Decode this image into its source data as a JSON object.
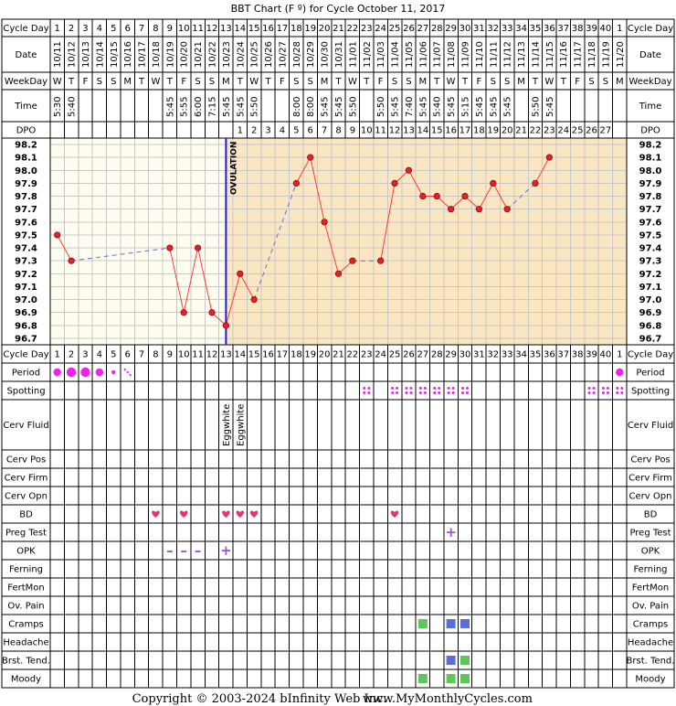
{
  "title": "BBT Chart (F º) for Cycle October 11, 2017",
  "copyright": "Copyright © 2003-2024 bInfinity Web Inc.",
  "site": "www.MyMonthlyCycles.com",
  "ovulation_label": "OVULATION",
  "ovulation_day": 13,
  "row_labels": {
    "cycle_day": "Cycle Day",
    "date": "Date",
    "weekday": "WeekDay",
    "time": "Time",
    "dpo": "DPO",
    "period": "Period",
    "spotting": "Spotting",
    "cerv_fluid": "Cerv Fluid",
    "cerv_pos": "Cerv Pos",
    "cerv_firm": "Cerv Firm",
    "cerv_opn": "Cerv Opn",
    "bd": "BD",
    "preg_test": "Preg Test",
    "opk": "OPK",
    "ferning": "Ferning",
    "fertmon": "FertMon",
    "ov_pain": "Ov. Pain",
    "cramps": "Cramps",
    "headache": "Headache",
    "brst_tend": "Brst. Tend.",
    "moody": "Moody"
  },
  "cycle_days": [
    "1",
    "2",
    "3",
    "4",
    "5",
    "6",
    "7",
    "8",
    "9",
    "10",
    "11",
    "12",
    "13",
    "14",
    "15",
    "16",
    "17",
    "18",
    "19",
    "20",
    "21",
    "22",
    "23",
    "24",
    "25",
    "26",
    "27",
    "28",
    "29",
    "30",
    "31",
    "32",
    "33",
    "34",
    "35",
    "36",
    "37",
    "38",
    "39",
    "40",
    "1"
  ],
  "dates": [
    "10/11",
    "10/12",
    "10/13",
    "10/14",
    "10/15",
    "10/16",
    "10/17",
    "10/18",
    "10/19",
    "10/20",
    "10/21",
    "10/22",
    "10/23",
    "10/24",
    "10/25",
    "10/26",
    "10/27",
    "10/28",
    "10/29",
    "10/30",
    "10/31",
    "11/01",
    "11/02",
    "11/03",
    "11/04",
    "11/05",
    "11/06",
    "11/07",
    "11/08",
    "11/09",
    "11/10",
    "11/11",
    "11/12",
    "11/13",
    "11/14",
    "11/15",
    "11/16",
    "11/17",
    "11/18",
    "11/19",
    "11/20"
  ],
  "weekdays": [
    "W",
    "T",
    "F",
    "S",
    "S",
    "M",
    "T",
    "W",
    "T",
    "F",
    "S",
    "S",
    "M",
    "T",
    "W",
    "T",
    "F",
    "S",
    "S",
    "M",
    "T",
    "W",
    "T",
    "F",
    "S",
    "S",
    "M",
    "T",
    "W",
    "T",
    "F",
    "S",
    "S",
    "M",
    "T",
    "W",
    "T",
    "F",
    "S",
    "S",
    "M"
  ],
  "times": [
    "5:30",
    "5:40",
    "",
    "",
    "",
    "",
    "",
    "",
    "5:45",
    "5:55",
    "6:00",
    "7:15",
    "5:45",
    "5:45",
    "5:50",
    "",
    "",
    "8:00",
    "8:00",
    "5:45",
    "5:45",
    "5:50",
    "",
    "5:50",
    "5:45",
    "7:40",
    "5:45",
    "5:40",
    "5:45",
    "5:15",
    "5:45",
    "5:45",
    "5:45",
    "",
    "5:50",
    "5:45",
    "",
    "",
    "",
    "",
    ""
  ],
  "dpo": [
    "",
    "",
    "",
    "",
    "",
    "",
    "",
    "",
    "",
    "",
    "",
    "",
    "",
    "1",
    "2",
    "3",
    "4",
    "5",
    "6",
    "7",
    "8",
    "9",
    "10",
    "11",
    "12",
    "13",
    "14",
    "15",
    "16",
    "17",
    "18",
    "19",
    "20",
    "21",
    "22",
    "23",
    "24",
    "25",
    "26",
    "27",
    ""
  ],
  "temp_labels": [
    "98.2",
    "98.1",
    "98.0",
    "97.9",
    "97.8",
    "97.7",
    "97.6",
    "97.5",
    "97.4",
    "97.3",
    "97.2",
    "97.1",
    "97.0",
    "96.9",
    "96.8",
    "96.7"
  ],
  "cerv_fluid": [
    {
      "day": 13,
      "text": "Eggwhite"
    },
    {
      "day": 14,
      "text": "Eggwhite"
    }
  ],
  "period": [
    {
      "day": 1,
      "level": "medium"
    },
    {
      "day": 2,
      "level": "heavy"
    },
    {
      "day": 3,
      "level": "heavy"
    },
    {
      "day": 4,
      "level": "medium"
    },
    {
      "day": 5,
      "level": "light"
    },
    {
      "day": 6,
      "level": "spotty"
    },
    {
      "day": 41,
      "level": "medium"
    }
  ],
  "spotting_days": [
    23,
    25,
    26,
    27,
    28,
    29,
    30,
    39,
    40,
    41
  ],
  "bd_days": [
    8,
    10,
    13,
    14,
    15,
    25
  ],
  "preg_test": [
    {
      "day": 29,
      "symbol": "+"
    }
  ],
  "opk": [
    {
      "day": 9,
      "symbol": "–"
    },
    {
      "day": 10,
      "symbol": "–"
    },
    {
      "day": 11,
      "symbol": "–"
    },
    {
      "day": 13,
      "symbol": "+"
    }
  ],
  "symptoms": {
    "cramps": [
      {
        "day": 27,
        "color": "#5cc85c"
      },
      {
        "day": 29,
        "color": "#5a6ed8"
      },
      {
        "day": 30,
        "color": "#5a6ed8"
      }
    ],
    "brst_tend": [
      {
        "day": 29,
        "color": "#5a6ed8"
      },
      {
        "day": 30,
        "color": "#5cc85c"
      }
    ],
    "moody": [
      {
        "day": 27,
        "color": "#5cc85c"
      },
      {
        "day": 29,
        "color": "#5cc85c"
      },
      {
        "day": 30,
        "color": "#5cc85c"
      }
    ]
  },
  "colors": {
    "line": "#ff3b3b",
    "dot": "#e0202a",
    "gap": "#6a6ae0",
    "follicular_bg": "#fffdf0",
    "luteal_bg": "#fbe6c2",
    "ovulation": "#1c1cd8",
    "period": "#ee22ee",
    "bd_heart": "#e8336c",
    "preg_plus": "#9b59d0",
    "opk_mark": "#9b59d0"
  },
  "chart_data": {
    "type": "line",
    "title": "BBT Chart (F º) for Cycle October 11, 2017",
    "xlabel": "Cycle Day",
    "ylabel": "",
    "ylim": [
      96.7,
      98.2
    ],
    "x": [
      1,
      2,
      9,
      10,
      11,
      12,
      13,
      14,
      15,
      18,
      19,
      20,
      21,
      22,
      24,
      25,
      26,
      27,
      28,
      29,
      30,
      31,
      32,
      33,
      35,
      36
    ],
    "y": [
      97.5,
      97.3,
      97.4,
      96.9,
      97.4,
      96.9,
      96.8,
      97.2,
      97.0,
      97.9,
      98.1,
      97.6,
      97.2,
      97.3,
      97.3,
      97.9,
      98.0,
      97.8,
      97.8,
      97.7,
      97.8,
      97.7,
      97.9,
      97.7,
      97.9,
      98.1
    ]
  }
}
